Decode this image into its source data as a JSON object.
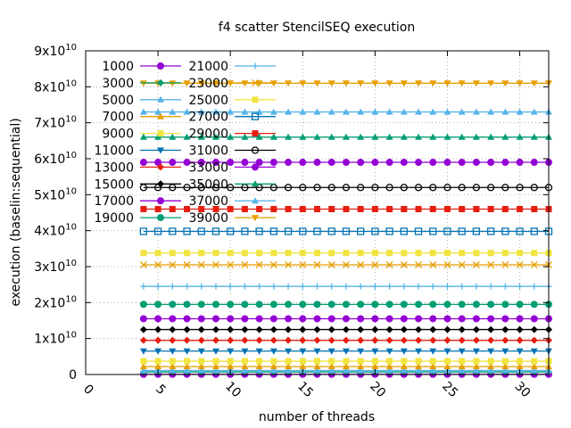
{
  "chart_data": {
    "type": "line",
    "title": "f4 scatter StencilSEQ execution",
    "xlabel": "number of threads",
    "ylabel": "execution (baselin:sequential)",
    "xlim": [
      0,
      32
    ],
    "ylim": [
      0,
      90000000000
    ],
    "x_ticks": [
      {
        "value": 0,
        "label": "0"
      },
      {
        "value": 5,
        "label": "5"
      },
      {
        "value": 10,
        "label": "10"
      },
      {
        "value": 15,
        "label": "15"
      },
      {
        "value": 20,
        "label": "20"
      },
      {
        "value": 25,
        "label": "25"
      },
      {
        "value": 30,
        "label": "30"
      }
    ],
    "y_ticks": [
      {
        "value": 0,
        "mant": "0",
        "exp": ""
      },
      {
        "value": 10000000000,
        "mant": "1x10",
        "exp": "10"
      },
      {
        "value": 20000000000,
        "mant": "2x10",
        "exp": "10"
      },
      {
        "value": 30000000000,
        "mant": "3x10",
        "exp": "10"
      },
      {
        "value": 40000000000,
        "mant": "4x10",
        "exp": "10"
      },
      {
        "value": 50000000000,
        "mant": "5x10",
        "exp": "10"
      },
      {
        "value": 60000000000,
        "mant": "6x10",
        "exp": "10"
      },
      {
        "value": 70000000000,
        "mant": "7x10",
        "exp": "10"
      },
      {
        "value": 80000000000,
        "mant": "8x10",
        "exp": "10"
      },
      {
        "value": 90000000000,
        "mant": "9x10",
        "exp": "10"
      }
    ],
    "grid": true,
    "legend_position": "top-left",
    "x": [
      4,
      5,
      6,
      7,
      8,
      9,
      10,
      11,
      12,
      13,
      14,
      15,
      16,
      17,
      18,
      19,
      20,
      21,
      22,
      23,
      24,
      25,
      26,
      27,
      28,
      29,
      30,
      31,
      32
    ],
    "series": [
      {
        "name": "1000",
        "value": 50000000,
        "color": "#9400d3",
        "marker": "circle"
      },
      {
        "name": "3000",
        "value": 700000000,
        "color": "#009e73",
        "marker": "diamond"
      },
      {
        "name": "5000",
        "value": 1100000000,
        "color": "#56b4e9",
        "marker": "triangle"
      },
      {
        "name": "7000",
        "value": 2200000000,
        "color": "#e69f00",
        "marker": "triangle"
      },
      {
        "name": "9000",
        "value": 3700000000,
        "color": "#f0e442",
        "marker": "square"
      },
      {
        "name": "11000",
        "value": 6500000000,
        "color": "#0072b2",
        "marker": "triangle-down"
      },
      {
        "name": "13000",
        "value": 9500000000,
        "color": "#e51e10",
        "marker": "diamond"
      },
      {
        "name": "15000",
        "value": 12500000000,
        "color": "#000000",
        "marker": "diamond"
      },
      {
        "name": "17000",
        "value": 15500000000,
        "color": "#9400d3",
        "marker": "circle"
      },
      {
        "name": "19000",
        "value": 19500000000,
        "color": "#009e73",
        "marker": "circle"
      },
      {
        "name": "21000",
        "value": 24500000000,
        "color": "#56b4e9",
        "marker": "plus"
      },
      {
        "name": "23000",
        "value": 30500000000,
        "color": "#e69f00",
        "marker": "x"
      },
      {
        "name": "25000",
        "value": 33800000000,
        "color": "#f0e442",
        "marker": "square"
      },
      {
        "name": "27000",
        "value": 39800000000,
        "color": "#0072b2",
        "marker": "square-open"
      },
      {
        "name": "29000",
        "value": 46000000000,
        "color": "#e51e10",
        "marker": "square"
      },
      {
        "name": "31000",
        "value": 52000000000,
        "color": "#000000",
        "marker": "circle-open"
      },
      {
        "name": "33000",
        "value": 59000000000,
        "color": "#9400d3",
        "marker": "circle"
      },
      {
        "name": "35000",
        "value": 66000000000,
        "color": "#009e73",
        "marker": "triangle"
      },
      {
        "name": "37000",
        "value": 73000000000,
        "color": "#56b4e9",
        "marker": "triangle"
      },
      {
        "name": "39000",
        "value": 81000000000,
        "color": "#e69f00",
        "marker": "triangle-down"
      }
    ]
  }
}
